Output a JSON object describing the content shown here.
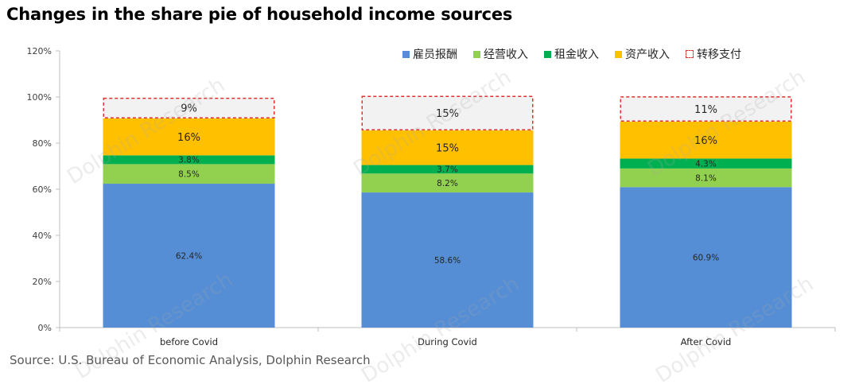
{
  "title": "Changes in the share pie of household income sources",
  "source": "Source: U.S. Bureau of Economic Analysis, Dolphin Research",
  "watermark": "Dolphin Research",
  "chart_data": {
    "type": "bar",
    "stacked": true,
    "categories": [
      "before Covid",
      "During Covid",
      "After Covid"
    ],
    "ylim": [
      0,
      120
    ],
    "yticks": [
      0,
      20,
      40,
      60,
      80,
      100,
      120
    ],
    "ytick_labels": [
      "0%",
      "20%",
      "40%",
      "60%",
      "80%",
      "100%",
      "120%"
    ],
    "legend_position": "top-right",
    "series": [
      {
        "name": "雇员报酬",
        "color": "#558ED5",
        "values": [
          62.4,
          58.6,
          60.9
        ],
        "labels": [
          "62.4%",
          "58.6%",
          "60.9%"
        ],
        "style": "solid"
      },
      {
        "name": "经营收入",
        "color": "#92D050",
        "values": [
          8.5,
          8.2,
          8.1
        ],
        "labels": [
          "8.5%",
          "8.2%",
          "8.1%"
        ],
        "style": "solid"
      },
      {
        "name": "租金收入",
        "color": "#00B050",
        "values": [
          3.8,
          3.7,
          4.3
        ],
        "labels": [
          "3.8%",
          "3.7%",
          "4.3%"
        ],
        "style": "solid"
      },
      {
        "name": "资产收入",
        "color": "#FFC000",
        "values": [
          16,
          15,
          16
        ],
        "labels": [
          "16%",
          "15%",
          "16%"
        ],
        "style": "solid"
      },
      {
        "name": "转移支付",
        "color": "#E03030",
        "values": [
          9,
          15,
          11
        ],
        "labels": [
          "9%",
          "15%",
          "11%"
        ],
        "style": "dashed"
      }
    ]
  }
}
